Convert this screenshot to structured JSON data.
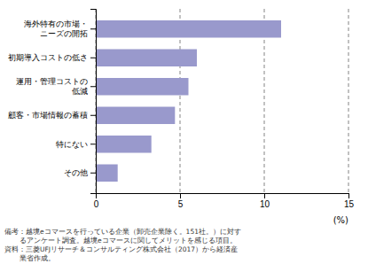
{
  "chart_data": {
    "type": "bar",
    "orientation": "horizontal",
    "categories": [
      "海外特有の市場・\nニーズの開拓",
      "初期導入コストの低さ",
      "運用・管理コストの\n低減",
      "顧客・市場情報の蓄積",
      "特にない",
      "その他"
    ],
    "values": [
      11.0,
      6.0,
      5.5,
      4.7,
      3.3,
      1.3
    ],
    "color": "#9999cc",
    "xlim": [
      0,
      15
    ],
    "xticks": [
      0,
      5,
      10,
      15
    ],
    "xlabel": "(%)",
    "grid": true,
    "annotations": [
      "備考：越境eコマースを行っている企業（卸売企業除く。151社。）に対す",
      "るアンケート調査。越境eコマースに関してメリットを感じる項目。",
      "資料：三菱UFJリサーチ＆コンサルティング株式会社（2017）から経済産",
      "業省作成。"
    ]
  }
}
